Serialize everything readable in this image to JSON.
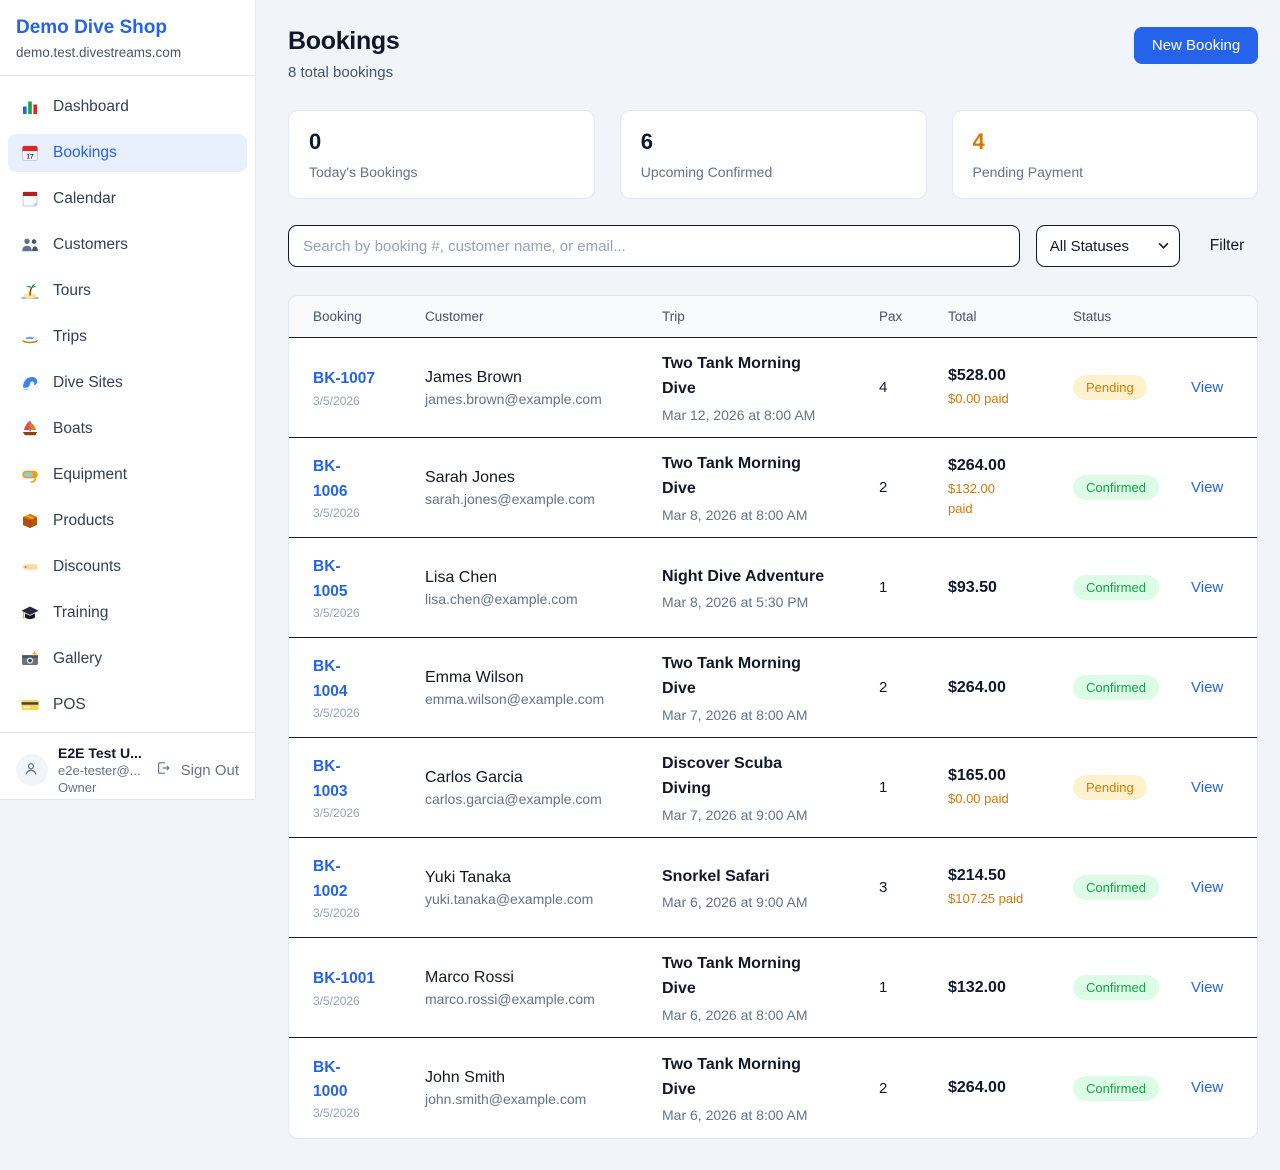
{
  "theme": {
    "accent_blue": "#2563eb",
    "pending_text": "#d97706",
    "pending_bg": "#fdf2cd",
    "confirmed_text": "#16a34a",
    "confirmed_bg": "#dcfce7",
    "paid_text": "#d97706",
    "page_bg": "#f1f5f9"
  },
  "sidebar": {
    "brand": {
      "name": "Demo Dive Shop",
      "domain": "demo.test.divestreams.com"
    },
    "items": [
      {
        "slug": "dashboard",
        "label": "Dashboard",
        "icon": "bar-chart-icon",
        "active": false
      },
      {
        "slug": "bookings",
        "label": "Bookings",
        "icon": "calendar-icon",
        "active": true
      },
      {
        "slug": "calendar",
        "label": "Calendar",
        "icon": "tear-calendar-icon",
        "active": false
      },
      {
        "slug": "customers",
        "label": "Customers",
        "icon": "people-icon",
        "active": false
      },
      {
        "slug": "tours",
        "label": "Tours",
        "icon": "island-icon",
        "active": false
      },
      {
        "slug": "trips",
        "label": "Trips",
        "icon": "speedboat-icon",
        "active": false
      },
      {
        "slug": "dive-sites",
        "label": "Dive Sites",
        "icon": "wave-icon",
        "active": false
      },
      {
        "slug": "boats",
        "label": "Boats",
        "icon": "sailboat-icon",
        "active": false
      },
      {
        "slug": "equipment",
        "label": "Equipment",
        "icon": "dive-mask-icon",
        "active": false
      },
      {
        "slug": "products",
        "label": "Products",
        "icon": "package-icon",
        "active": false
      },
      {
        "slug": "discounts",
        "label": "Discounts",
        "icon": "tag-icon",
        "active": false
      },
      {
        "slug": "training",
        "label": "Training",
        "icon": "graduation-cap-icon",
        "active": false
      },
      {
        "slug": "gallery",
        "label": "Gallery",
        "icon": "camera-icon",
        "active": false
      },
      {
        "slug": "pos",
        "label": "POS",
        "icon": "credit-card-icon",
        "active": false
      }
    ],
    "user": {
      "name": "E2E Test U...",
      "email": "e2e-tester@...",
      "role": "Owner",
      "sign_out_label": "Sign Out"
    }
  },
  "header": {
    "title": "Bookings",
    "subtitle": "8 total bookings",
    "new_booking_label": "New Booking"
  },
  "stats": [
    {
      "value": "0",
      "label": "Today's Bookings",
      "accent": false
    },
    {
      "value": "6",
      "label": "Upcoming Confirmed",
      "accent": false
    },
    {
      "value": "4",
      "label": "Pending Payment",
      "accent": true
    }
  ],
  "controls": {
    "search_placeholder": "Search by booking #, customer name, or email...",
    "status_filter_value": "All Statuses",
    "filter_label": "Filter"
  },
  "table": {
    "headers": [
      "Booking",
      "Customer",
      "Trip",
      "Pax",
      "Total",
      "Status",
      ""
    ],
    "view_label": "View",
    "rows": [
      {
        "number_lines": [
          "BK-1007"
        ],
        "date": "3/5/2026",
        "customer": "James Brown",
        "email": "james.brown@example.com",
        "trip_lines": [
          "Two Tank Morning",
          "Dive"
        ],
        "trip_datetime": "Mar 12, 2026 at 8:00 AM",
        "pax": "4",
        "total": "$528.00",
        "paid_lines": [
          "$0.00 paid"
        ],
        "status": "Pending"
      },
      {
        "number_lines": [
          "BK-",
          "1006"
        ],
        "date": "3/5/2026",
        "customer": "Sarah Jones",
        "email": "sarah.jones@example.com",
        "trip_lines": [
          "Two Tank Morning",
          "Dive"
        ],
        "trip_datetime": "Mar 8, 2026 at 8:00 AM",
        "pax": "2",
        "total": "$264.00",
        "paid_lines": [
          "$132.00",
          "paid"
        ],
        "status": "Confirmed"
      },
      {
        "number_lines": [
          "BK-",
          "1005"
        ],
        "date": "3/5/2026",
        "customer": "Lisa Chen",
        "email": "lisa.chen@example.com",
        "trip_lines": [
          "Night Dive Adventure"
        ],
        "trip_datetime": "Mar 8, 2026 at 5:30 PM",
        "pax": "1",
        "total": "$93.50",
        "paid_lines": null,
        "status": "Confirmed"
      },
      {
        "number_lines": [
          "BK-",
          "1004"
        ],
        "date": "3/5/2026",
        "customer": "Emma Wilson",
        "email": "emma.wilson@example.com",
        "trip_lines": [
          "Two Tank Morning",
          "Dive"
        ],
        "trip_datetime": "Mar 7, 2026 at 8:00 AM",
        "pax": "2",
        "total": "$264.00",
        "paid_lines": null,
        "status": "Confirmed"
      },
      {
        "number_lines": [
          "BK-",
          "1003"
        ],
        "date": "3/5/2026",
        "customer": "Carlos Garcia",
        "email": "carlos.garcia@example.com",
        "trip_lines": [
          "Discover Scuba",
          "Diving"
        ],
        "trip_datetime": "Mar 7, 2026 at 9:00 AM",
        "pax": "1",
        "total": "$165.00",
        "paid_lines": [
          "$0.00 paid"
        ],
        "status": "Pending"
      },
      {
        "number_lines": [
          "BK-",
          "1002"
        ],
        "date": "3/5/2026",
        "customer": "Yuki Tanaka",
        "email": "yuki.tanaka@example.com",
        "trip_lines": [
          "Snorkel Safari"
        ],
        "trip_datetime": "Mar 6, 2026 at 9:00 AM",
        "pax": "3",
        "total": "$214.50",
        "paid_lines": [
          "$107.25 paid"
        ],
        "status": "Confirmed"
      },
      {
        "number_lines": [
          "BK-1001"
        ],
        "date": "3/5/2026",
        "customer": "Marco Rossi",
        "email": "marco.rossi@example.com",
        "trip_lines": [
          "Two Tank Morning",
          "Dive"
        ],
        "trip_datetime": "Mar 6, 2026 at 8:00 AM",
        "pax": "1",
        "total": "$132.00",
        "paid_lines": null,
        "status": "Confirmed"
      },
      {
        "number_lines": [
          "BK-",
          "1000"
        ],
        "date": "3/5/2026",
        "customer": "John Smith",
        "email": "john.smith@example.com",
        "trip_lines": [
          "Two Tank Morning",
          "Dive"
        ],
        "trip_datetime": "Mar 6, 2026 at 8:00 AM",
        "pax": "2",
        "total": "$264.00",
        "paid_lines": null,
        "status": "Confirmed"
      }
    ]
  }
}
